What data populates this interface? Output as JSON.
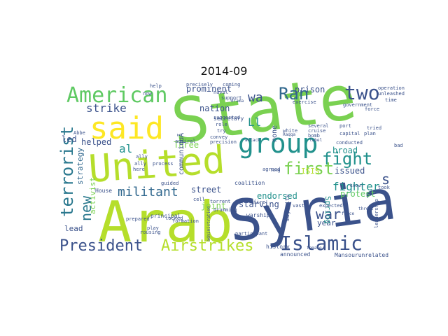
{
  "figure": {
    "title": "2014-09"
  },
  "palette": {
    "dark_purple": "#440154",
    "indigo": "#3b528b",
    "blue": "#31688e",
    "teal": "#21918c",
    "green": "#35b779",
    "light_green": "#7ad151",
    "lime": "#b5de2b",
    "yellow": "#fde725"
  },
  "words": [
    {
      "text": "State",
      "color": "#7ad151"
    },
    {
      "text": "Syria",
      "color": "#3b528b"
    },
    {
      "text": "Arab",
      "color": "#b5de2b"
    },
    {
      "text": "United",
      "color": "#b5de2b"
    },
    {
      "text": "said",
      "color": "#fde725"
    },
    {
      "text": "American",
      "color": "#5ec962"
    },
    {
      "text": "group",
      "color": "#21918c"
    },
    {
      "text": "Islamic",
      "color": "#3b528b"
    },
    {
      "text": "President",
      "color": "#3b528b"
    },
    {
      "text": "Airstrikes",
      "color": "#b5de2b"
    },
    {
      "text": "terrorist",
      "color": "#2a788e"
    },
    {
      "text": "fight",
      "color": "#21918c"
    },
    {
      "text": "two",
      "color": "#3b528b"
    },
    {
      "text": "Ran",
      "color": "#31688e"
    },
    {
      "text": "first",
      "color": "#7ad151"
    },
    {
      "text": "militant",
      "color": "#31688e"
    },
    {
      "text": "new",
      "color": "#2a788e"
    },
    {
      "text": "war",
      "color": "#3b528b"
    },
    {
      "text": "strike",
      "color": "#3b528b"
    },
    {
      "text": "fighter",
      "color": "#21918c"
    },
    {
      "text": "s",
      "color": "#3b528b"
    },
    {
      "text": "wa",
      "color": "#3b528b"
    },
    {
      "text": "Ll",
      "color": "#21918c"
    },
    {
      "text": "al",
      "color": "#21918c"
    },
    {
      "text": "prominent",
      "color": "#3b528b"
    },
    {
      "text": "nation",
      "color": "#3b528b"
    },
    {
      "text": "led",
      "color": "#3b528b"
    },
    {
      "text": "helped",
      "color": "#3b528b"
    },
    {
      "text": "Three",
      "color": "#7ad151"
    },
    {
      "text": "street",
      "color": "#3b528b"
    },
    {
      "text": "joint",
      "color": "#7ad151"
    },
    {
      "text": "starving",
      "color": "#3b528b"
    },
    {
      "text": "endorsed",
      "color": "#21918c"
    },
    {
      "text": "broad",
      "color": "#21918c"
    },
    {
      "text": "issued",
      "color": "#3b528b"
    },
    {
      "text": "protest",
      "color": "#5ec962"
    },
    {
      "text": "prison",
      "color": "#3b528b"
    },
    {
      "text": "year",
      "color": "#3b528b"
    },
    {
      "text": "Spring",
      "color": "#21918c"
    },
    {
      "text": "lead",
      "color": "#3b528b"
    },
    {
      "text": "activist",
      "color": "#7ad151"
    },
    {
      "text": "strategy",
      "color": "#31688e"
    },
    {
      "text": "ISIS",
      "color": "#b5de2b"
    },
    {
      "text": "none",
      "color": "#3b528b"
    },
    {
      "text": "communiquÃ",
      "color": "#3b528b"
    },
    {
      "text": "House",
      "color": "#3b528b"
    },
    {
      "text": "principal",
      "color": "#3b528b"
    },
    {
      "text": "warship",
      "color": "#3b528b"
    },
    {
      "text": "coalition",
      "color": "#3b528b"
    },
    {
      "text": "majority",
      "color": "#3b528b"
    },
    {
      "text": "secretary",
      "color": "#3b528b"
    },
    {
      "text": "history",
      "color": "#3b528b"
    },
    {
      "text": "announced",
      "color": "#3b528b"
    },
    {
      "text": "Mansourunrelated",
      "color": "#3b528b"
    },
    {
      "text": "precisely",
      "color": "#3b528b"
    },
    {
      "text": "coming",
      "color": "#3b528b"
    },
    {
      "text": "naval",
      "color": "#3b528b"
    },
    {
      "text": "support",
      "color": "#3b528b"
    },
    {
      "text": "suggested",
      "color": "#3b528b"
    },
    {
      "text": "role",
      "color": "#3b528b"
    },
    {
      "text": "try",
      "color": "#3b528b"
    },
    {
      "text": "convey",
      "color": "#3b528b"
    },
    {
      "text": "admiral",
      "color": "#3b528b"
    },
    {
      "text": "precision",
      "color": "#3b528b"
    },
    {
      "text": "several",
      "color": "#3b528b"
    },
    {
      "text": "cruise",
      "color": "#3b528b"
    },
    {
      "text": "bomb",
      "color": "#3b528b"
    },
    {
      "text": "white",
      "color": "#3b528b"
    },
    {
      "text": "capital",
      "color": "#3b528b"
    },
    {
      "text": "conducted",
      "color": "#3b528b"
    },
    {
      "text": "port",
      "color": "#3b528b"
    },
    {
      "text": "tried",
      "color": "#3b528b"
    },
    {
      "text": "took",
      "color": "#3b528b"
    },
    {
      "text": "plan",
      "color": "#3b528b"
    },
    {
      "text": "exercise",
      "color": "#3b528b"
    },
    {
      "text": "government",
      "color": "#3b528b"
    },
    {
      "text": "operation",
      "color": "#3b528b"
    },
    {
      "text": "unleashed",
      "color": "#3b528b"
    },
    {
      "text": "time",
      "color": "#3b528b"
    },
    {
      "text": "force",
      "color": "#3b528b"
    },
    {
      "text": "expected",
      "color": "#3b528b"
    },
    {
      "text": "vast",
      "color": "#3b528b"
    },
    {
      "text": "agreed",
      "color": "#3b528b"
    },
    {
      "text": "torrent",
      "color": "#3b528b"
    },
    {
      "text": "drumming",
      "color": "#3b528b"
    },
    {
      "text": "fire",
      "color": "#3b528b"
    },
    {
      "text": "participant",
      "color": "#3b528b"
    },
    {
      "text": "cell",
      "color": "#3b528b"
    },
    {
      "text": "locked",
      "color": "#3b528b"
    },
    {
      "text": "formation",
      "color": "#3b528b"
    },
    {
      "text": "play",
      "color": "#3b528b"
    },
    {
      "text": "rousing",
      "color": "#3b528b"
    },
    {
      "text": "guided",
      "color": "#3b528b"
    },
    {
      "text": "prepared",
      "color": "#3b528b"
    },
    {
      "text": "process",
      "color": "#3b528b"
    },
    {
      "text": "ally",
      "color": "#3b528b"
    },
    {
      "text": "Abbe",
      "color": "#3b528b"
    },
    {
      "text": "help",
      "color": "#3b528b"
    },
    {
      "text": "now",
      "color": "#3b528b"
    },
    {
      "text": "ally",
      "color": "#3b528b"
    },
    {
      "text": "here",
      "color": "#3b528b"
    },
    {
      "text": "bad",
      "color": "#3b528b"
    },
    {
      "text": "leadership",
      "color": "#3b528b"
    },
    {
      "text": "Raqqa",
      "color": "#3b528b"
    },
    {
      "text": "label",
      "color": "#3b528b"
    },
    {
      "text": "drama",
      "color": "#3b528b"
    },
    {
      "text": "attack",
      "color": "#3b528b"
    },
    {
      "text": "known",
      "color": "#3b528b"
    },
    {
      "text": "long",
      "color": "#3b528b"
    },
    {
      "text": "threat",
      "color": "#3b528b"
    },
    {
      "text": "force",
      "color": "#3b528b"
    },
    {
      "text": "administration",
      "color": "#3b528b"
    },
    {
      "text": "female",
      "color": "#3b528b"
    }
  ]
}
